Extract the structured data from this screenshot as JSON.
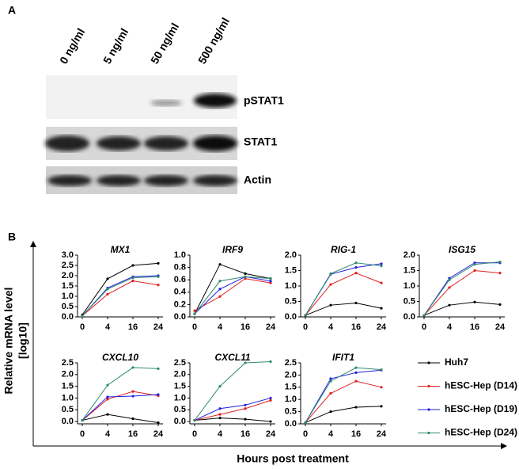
{
  "panel_a": {
    "label": "A",
    "columns": [
      "0 ng/ml",
      "5 ng/ml",
      "50 ng/ml",
      "500 ng/ml"
    ],
    "rows": [
      "pSTAT1",
      "STAT1",
      "Actin"
    ]
  },
  "panel_b": {
    "label": "B",
    "ylabel": [
      "Relative mRNA level",
      "[log10]"
    ],
    "xlabel": "Hours post treatment"
  },
  "chart_data": [
    {
      "type": "line",
      "title": "MX1",
      "categories": [
        "0",
        "4",
        "16",
        "24"
      ],
      "ylim": [
        0,
        3
      ],
      "yticks": [
        {
          "value": 0,
          "label": "0.0"
        },
        0.5,
        {
          "value": 1,
          "label": "1.0"
        },
        1.5,
        {
          "value": 2,
          "label": "2.0"
        },
        2.5,
        {
          "value": 3,
          "label": "3.0"
        }
      ],
      "series": [
        {
          "name": "Huh7",
          "color": "#000000",
          "values": [
            0.1,
            1.85,
            2.5,
            2.6
          ]
        },
        {
          "name": "hESC-Hep (D14)",
          "color": "#e02020",
          "values": [
            0.05,
            1.1,
            1.75,
            1.55
          ]
        },
        {
          "name": "hESC-Hep (D19)",
          "color": "#2020e0",
          "values": [
            0.05,
            1.4,
            1.95,
            2.0
          ]
        },
        {
          "name": "hESC-Hep (D24)",
          "color": "#2e8b6e",
          "values": [
            0.05,
            1.35,
            1.9,
            1.95
          ]
        }
      ]
    },
    {
      "type": "line",
      "title": "IRF9",
      "categories": [
        "0",
        "4",
        "16",
        "24"
      ],
      "ylim": [
        0,
        1
      ],
      "yticks": [
        {
          "value": 0,
          "label": "0.0"
        },
        0.2,
        0.4,
        0.6,
        0.8,
        {
          "value": 1,
          "label": "1.0"
        }
      ],
      "series": [
        {
          "name": "Huh7",
          "color": "#000000",
          "values": [
            0.05,
            0.85,
            0.7,
            0.62
          ]
        },
        {
          "name": "hESC-Hep (D14)",
          "color": "#e02020",
          "values": [
            0.1,
            0.33,
            0.62,
            0.55
          ]
        },
        {
          "name": "hESC-Hep (D19)",
          "color": "#2020e0",
          "values": [
            0.05,
            0.45,
            0.65,
            0.58
          ]
        },
        {
          "name": "hESC-Hep (D24)",
          "color": "#2e8b6e",
          "values": [
            0.05,
            0.58,
            0.65,
            0.62
          ]
        }
      ]
    },
    {
      "type": "line",
      "title": "RIG-1",
      "categories": [
        "0",
        "4",
        "16",
        "24"
      ],
      "ylim": [
        0,
        2
      ],
      "yticks": [
        {
          "value": 0,
          "label": "0.0"
        },
        0.5,
        {
          "value": 1,
          "label": "1.0"
        },
        1.5,
        {
          "value": 2,
          "label": "2.0"
        }
      ],
      "series": [
        {
          "name": "Huh7",
          "color": "#000000",
          "values": [
            0.05,
            0.38,
            0.45,
            0.28
          ]
        },
        {
          "name": "hESC-Hep (D14)",
          "color": "#e02020",
          "values": [
            0.05,
            1.05,
            1.42,
            1.1
          ]
        },
        {
          "name": "hESC-Hep (D19)",
          "color": "#2020e0",
          "values": [
            0.05,
            1.38,
            1.6,
            1.72
          ]
        },
        {
          "name": "hESC-Hep (D24)",
          "color": "#2e8b6e",
          "values": [
            0.05,
            1.4,
            1.75,
            1.65
          ]
        }
      ]
    },
    {
      "type": "line",
      "title": "ISG15",
      "categories": [
        "0",
        "4",
        "16",
        "24"
      ],
      "ylim": [
        0,
        2
      ],
      "yticks": [
        {
          "value": 0,
          "label": "0.0"
        },
        0.5,
        {
          "value": 1,
          "label": "1.0"
        },
        1.5,
        {
          "value": 2,
          "label": "2.0"
        }
      ],
      "series": [
        {
          "name": "Huh7",
          "color": "#000000",
          "values": [
            0.05,
            0.38,
            0.48,
            0.4
          ]
        },
        {
          "name": "hESC-Hep (D14)",
          "color": "#e02020",
          "values": [
            0.05,
            0.95,
            1.5,
            1.42
          ]
        },
        {
          "name": "hESC-Hep (D19)",
          "color": "#2020e0",
          "values": [
            0.05,
            1.25,
            1.75,
            1.75
          ]
        },
        {
          "name": "hESC-Hep (D24)",
          "color": "#2e8b6e",
          "values": [
            0.05,
            1.2,
            1.7,
            1.78
          ]
        }
      ]
    },
    {
      "type": "line",
      "title": "CXCL10",
      "categories": [
        "0",
        "4",
        "16",
        "24"
      ],
      "ylim": [
        -0.1,
        2.5
      ],
      "yticks": [
        {
          "value": 0,
          "label": "0.0"
        },
        0.5,
        {
          "value": 1,
          "label": "1.0"
        },
        1.5,
        {
          "value": 2,
          "label": "2.0"
        },
        2.5
      ],
      "series": [
        {
          "name": "Huh7",
          "color": "#000000",
          "values": [
            0.05,
            0.3,
            0.12,
            -0.05
          ]
        },
        {
          "name": "hESC-Hep (D14)",
          "color": "#e02020",
          "values": [
            0.05,
            0.95,
            1.28,
            1.1
          ]
        },
        {
          "name": "hESC-Hep (D19)",
          "color": "#2020e0",
          "values": [
            0.05,
            1.05,
            1.08,
            1.15
          ]
        },
        {
          "name": "hESC-Hep (D24)",
          "color": "#2e8b6e",
          "values": [
            0.05,
            1.55,
            2.3,
            2.25
          ]
        }
      ]
    },
    {
      "type": "line",
      "title": "CXCL11",
      "categories": [
        "0",
        "4",
        "16",
        "24"
      ],
      "ylim": [
        -0.1,
        2.5
      ],
      "yticks": [
        {
          "value": 0,
          "label": "0.0"
        },
        0.5,
        {
          "value": 1,
          "label": "1.0"
        },
        1.5,
        {
          "value": 2,
          "label": "2.0"
        },
        2.5
      ],
      "series": [
        {
          "name": "Huh7",
          "color": "#000000",
          "values": [
            0.05,
            0.15,
            0.1,
            0.0
          ]
        },
        {
          "name": "hESC-Hep (D14)",
          "color": "#e02020",
          "values": [
            0.05,
            0.3,
            0.55,
            0.9
          ]
        },
        {
          "name": "hESC-Hep (D19)",
          "color": "#2020e0",
          "values": [
            0.05,
            0.55,
            0.7,
            1.0
          ]
        },
        {
          "name": "hESC-Hep (D24)",
          "color": "#2e8b6e",
          "values": [
            0.05,
            1.5,
            2.5,
            2.55
          ]
        }
      ]
    },
    {
      "type": "line",
      "title": "IFIT1",
      "categories": [
        "0",
        "4",
        "16",
        "24"
      ],
      "ylim": [
        0,
        2.5
      ],
      "yticks": [
        {
          "value": 0,
          "label": "0.0"
        },
        0.5,
        {
          "value": 1,
          "label": "1.0"
        },
        1.5,
        {
          "value": 2,
          "label": "2.0"
        },
        2.5
      ],
      "series": [
        {
          "name": "Huh7",
          "color": "#000000",
          "values": [
            0.05,
            0.5,
            0.68,
            0.72
          ]
        },
        {
          "name": "hESC-Hep (D14)",
          "color": "#e02020",
          "values": [
            0.05,
            1.25,
            1.75,
            1.5
          ]
        },
        {
          "name": "hESC-Hep (D19)",
          "color": "#2020e0",
          "values": [
            0.05,
            1.85,
            2.1,
            2.2
          ]
        },
        {
          "name": "hESC-Hep (D24)",
          "color": "#2e8b6e",
          "values": [
            0.05,
            1.75,
            2.3,
            2.22
          ]
        }
      ]
    }
  ]
}
